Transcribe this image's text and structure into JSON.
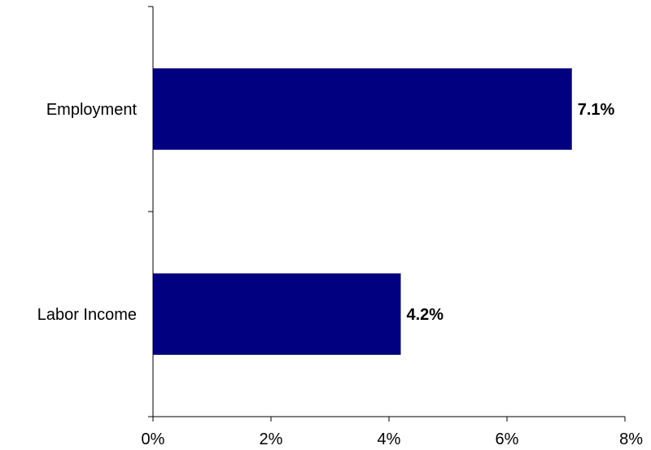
{
  "chart_data": {
    "type": "bar",
    "orientation": "horizontal",
    "categories": [
      "Employment",
      "Labor Income"
    ],
    "values": [
      7.1,
      4.2
    ],
    "data_labels": [
      "7.1%",
      "4.2%"
    ],
    "xlim": [
      0,
      8
    ],
    "x_ticks": [
      0,
      2,
      4,
      6,
      8
    ],
    "x_tick_labels": [
      "0%",
      "2%",
      "4%",
      "6%",
      "8%"
    ],
    "grid": false,
    "legend": "none",
    "bar_color": "#000080"
  }
}
